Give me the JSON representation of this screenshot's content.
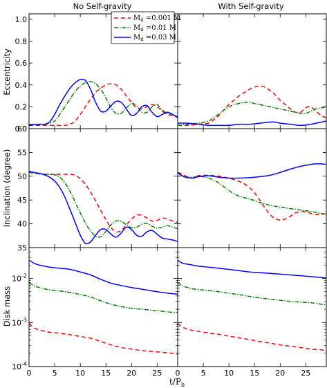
{
  "figure": {
    "column_titles": [
      "No Self-gravity",
      "With Self-gravity"
    ],
    "xlabel": "t/P_b",
    "xlabel_main": "t/P",
    "xlabel_sub": "b",
    "x_ticks": [
      "0",
      "5",
      "10",
      "15",
      "20",
      "25"
    ],
    "row_ylabels": [
      "Eccentricity",
      "Inclination (degree)",
      "Disk mass"
    ],
    "legend": [
      {
        "name": "M_d =0.001 M",
        "main": "M",
        "sub": "d",
        "rest": " =0.001 M",
        "color": "#ff0000",
        "dash": "6,4"
      },
      {
        "name": "M_d =0.01 M",
        "main": "M",
        "sub": "d",
        "rest": " =0.01 M",
        "color": "#008000",
        "dash": "6,2,1.5,2"
      },
      {
        "name": "M_d =0.03 M",
        "main": "M",
        "sub": "d",
        "rest": " =0.03 M",
        "color": "#0000ff",
        "dash": ""
      }
    ]
  },
  "chart_data": [
    {
      "type": "line",
      "panel": "eccentricity-no-self-gravity",
      "ylabel": "Eccentricity",
      "xlim": [
        0,
        29
      ],
      "ylim": [
        0,
        1.05
      ],
      "y_ticks": [
        "0.0",
        "0.2",
        "0.4",
        "0.6",
        "0.8",
        "1.0"
      ],
      "series": [
        {
          "name": "M_d =0.001 M",
          "x": [
            0,
            3,
            5,
            7,
            8,
            9,
            10,
            11,
            12,
            13,
            14,
            15,
            16,
            17,
            18,
            19,
            20,
            21,
            22,
            23,
            24,
            25,
            26,
            27,
            28,
            29
          ],
          "y": [
            0.03,
            0.03,
            0.03,
            0.03,
            0.04,
            0.07,
            0.13,
            0.2,
            0.27,
            0.33,
            0.37,
            0.4,
            0.41,
            0.4,
            0.36,
            0.3,
            0.24,
            0.19,
            0.18,
            0.2,
            0.22,
            0.2,
            0.16,
            0.13,
            0.12,
            0.11
          ]
        },
        {
          "name": "M_d =0.01 M",
          "x": [
            0,
            3,
            4,
            5,
            6,
            7,
            8,
            9,
            10,
            11,
            12,
            13,
            14,
            15,
            16,
            17,
            18,
            19,
            20,
            21,
            22,
            23,
            24,
            25,
            26,
            27,
            28,
            29
          ],
          "y": [
            0.04,
            0.04,
            0.05,
            0.07,
            0.13,
            0.2,
            0.27,
            0.34,
            0.39,
            0.42,
            0.43,
            0.41,
            0.36,
            0.28,
            0.19,
            0.14,
            0.14,
            0.19,
            0.23,
            0.21,
            0.15,
            0.15,
            0.2,
            0.22,
            0.17,
            0.14,
            0.13,
            0.11
          ]
        },
        {
          "name": "M_d =0.03 M",
          "x": [
            0,
            2,
            3,
            4,
            5,
            6,
            7,
            8,
            9,
            10,
            11,
            12,
            13,
            14,
            15,
            16,
            17,
            18,
            19,
            20,
            21,
            22,
            23,
            24,
            25,
            26,
            27,
            28,
            29
          ],
          "y": [
            0.03,
            0.04,
            0.04,
            0.06,
            0.13,
            0.22,
            0.3,
            0.37,
            0.42,
            0.45,
            0.44,
            0.36,
            0.24,
            0.16,
            0.16,
            0.21,
            0.25,
            0.24,
            0.18,
            0.12,
            0.14,
            0.2,
            0.21,
            0.15,
            0.11,
            0.13,
            0.15,
            0.13,
            0.1
          ]
        }
      ]
    },
    {
      "type": "line",
      "panel": "eccentricity-with-self-gravity",
      "ylabel": "Eccentricity",
      "xlim": [
        0,
        29
      ],
      "ylim": [
        0,
        1.05
      ],
      "series": [
        {
          "name": "M_d =0.001 M",
          "x": [
            0,
            2,
            4,
            6,
            7,
            8,
            9,
            10,
            11,
            12,
            13,
            14,
            15,
            16,
            17,
            18,
            19,
            20,
            21,
            22,
            23,
            24,
            25,
            26,
            27,
            28,
            29
          ],
          "y": [
            0.03,
            0.03,
            0.04,
            0.05,
            0.08,
            0.12,
            0.17,
            0.22,
            0.26,
            0.3,
            0.33,
            0.36,
            0.38,
            0.39,
            0.38,
            0.35,
            0.31,
            0.26,
            0.22,
            0.18,
            0.15,
            0.15,
            0.19,
            0.2,
            0.16,
            0.12,
            0.1
          ]
        },
        {
          "name": "M_d =0.01 M",
          "x": [
            0,
            2,
            4,
            6,
            7,
            8,
            9,
            10,
            11,
            12,
            13,
            14,
            15,
            16,
            17,
            18,
            19,
            20,
            21,
            22,
            23,
            24,
            25,
            26,
            27,
            28,
            29
          ],
          "y": [
            0.03,
            0.04,
            0.05,
            0.07,
            0.1,
            0.13,
            0.17,
            0.2,
            0.22,
            0.23,
            0.24,
            0.24,
            0.23,
            0.22,
            0.21,
            0.2,
            0.19,
            0.18,
            0.17,
            0.16,
            0.15,
            0.14,
            0.14,
            0.16,
            0.18,
            0.19,
            0.2
          ]
        },
        {
          "name": "M_d =0.03 M",
          "x": [
            0,
            2,
            4,
            6,
            8,
            10,
            12,
            14,
            16,
            18,
            19,
            20,
            22,
            24,
            26,
            27,
            28,
            29
          ],
          "y": [
            0.05,
            0.05,
            0.04,
            0.03,
            0.03,
            0.03,
            0.04,
            0.04,
            0.05,
            0.06,
            0.06,
            0.05,
            0.04,
            0.03,
            0.04,
            0.05,
            0.06,
            0.07
          ]
        }
      ]
    },
    {
      "type": "line",
      "panel": "inclination-no-self-gravity",
      "ylabel": "Inclination (degree)",
      "xlim": [
        0,
        29
      ],
      "ylim": [
        35,
        60
      ],
      "y_ticks": [
        "35",
        "40",
        "45",
        "50",
        "55",
        "60"
      ],
      "series": [
        {
          "name": "M_d =0.001 M",
          "x": [
            0,
            2,
            4,
            6,
            8,
            9,
            10,
            11,
            12,
            13,
            14,
            15,
            16,
            17,
            18,
            19,
            20,
            21,
            22,
            23,
            24,
            25,
            26,
            27,
            28,
            29
          ],
          "y": [
            50.8,
            50.5,
            50.4,
            50.4,
            50.4,
            50.2,
            49.5,
            48.3,
            46.7,
            44.8,
            42.8,
            40.9,
            39.2,
            38.3,
            38.6,
            39.8,
            41.0,
            41.8,
            41.8,
            41.2,
            40.6,
            40.7,
            41.2,
            41.0,
            40.6,
            40.3
          ]
        },
        {
          "name": "M_d =0.01 M",
          "x": [
            0,
            2,
            4,
            5,
            6,
            7,
            8,
            9,
            10,
            11,
            12,
            13,
            14,
            15,
            16,
            17,
            18,
            19,
            20,
            21,
            22,
            23,
            24,
            25,
            26,
            27,
            28,
            29
          ],
          "y": [
            50.8,
            50.5,
            50.4,
            50.3,
            49.8,
            48.6,
            46.8,
            44.6,
            42.3,
            40.2,
            38.5,
            37.4,
            37.3,
            38.4,
            39.8,
            40.6,
            40.5,
            39.8,
            39.2,
            39.3,
            39.9,
            40.1,
            39.5,
            39.1,
            39.3,
            39.6,
            39.3,
            39.0
          ]
        },
        {
          "name": "M_d =0.03 M",
          "x": [
            0,
            2,
            3,
            4,
            5,
            6,
            7,
            8,
            9,
            10,
            11,
            12,
            13,
            14,
            15,
            16,
            17,
            18,
            19,
            20,
            21,
            22,
            23,
            24,
            25,
            26,
            27,
            28,
            29
          ],
          "y": [
            51.0,
            50.6,
            50.3,
            49.8,
            49.0,
            47.6,
            45.6,
            43.0,
            40.3,
            37.6,
            35.9,
            36.2,
            37.6,
            38.8,
            38.8,
            37.8,
            37.2,
            38.1,
            39.3,
            38.8,
            37.6,
            37.4,
            38.3,
            38.6,
            37.8,
            37.0,
            36.8,
            36.6,
            36.3
          ]
        }
      ]
    },
    {
      "type": "line",
      "panel": "inclination-with-self-gravity",
      "ylabel": "Inclination (degree)",
      "xlim": [
        0,
        29
      ],
      "ylim": [
        35,
        60
      ],
      "series": [
        {
          "name": "M_d =0.001 M",
          "x": [
            0,
            1,
            2,
            3,
            4,
            6,
            8,
            10,
            12,
            13,
            14,
            15,
            16,
            17,
            18,
            19,
            20,
            21,
            22,
            23,
            24,
            25,
            26,
            27,
            28,
            29
          ],
          "y": [
            50.8,
            50.4,
            49.8,
            49.6,
            50.1,
            50.2,
            50.0,
            49.6,
            48.9,
            48.4,
            47.6,
            46.5,
            45.0,
            43.4,
            42.0,
            41.1,
            40.8,
            41.0,
            41.6,
            42.3,
            42.6,
            42.5,
            42.2,
            42.0,
            42.0,
            42.1
          ]
        },
        {
          "name": "M_d =0.01 M",
          "x": [
            0,
            1,
            2,
            3,
            4,
            5,
            6,
            7,
            8,
            9,
            10,
            11,
            12,
            13,
            14,
            15,
            16,
            17,
            18,
            20,
            22,
            24,
            26,
            28,
            29
          ],
          "y": [
            50.6,
            50.1,
            49.8,
            49.8,
            49.9,
            49.9,
            49.6,
            49.2,
            48.6,
            47.8,
            47.0,
            46.3,
            45.8,
            45.5,
            45.2,
            44.9,
            44.5,
            44.2,
            43.9,
            43.5,
            43.2,
            42.9,
            42.6,
            42.2,
            42.0
          ]
        },
        {
          "name": "M_d =0.03 M",
          "x": [
            0,
            1,
            2,
            3,
            4,
            6,
            8,
            10,
            12,
            14,
            16,
            18,
            20,
            22,
            24,
            25,
            26,
            27,
            28,
            29
          ],
          "y": [
            50.8,
            50.0,
            49.7,
            49.6,
            49.9,
            50.1,
            49.8,
            49.6,
            49.6,
            49.7,
            49.9,
            50.2,
            50.8,
            51.5,
            52.1,
            52.3,
            52.5,
            52.6,
            52.6,
            52.5
          ]
        }
      ]
    },
    {
      "type": "line",
      "panel": "disk-mass-no-self-gravity",
      "ylabel": "Disk mass",
      "xlim": [
        0,
        29
      ],
      "ylim": [
        0.0001,
        0.05
      ],
      "yscale": "log",
      "y_ticks": [
        "10-4",
        "10-3",
        "10-2"
      ],
      "series": [
        {
          "name": "M_d =0.001 M",
          "x": [
            0,
            1,
            2,
            3,
            4,
            6,
            8,
            10,
            12,
            14,
            16,
            18,
            20,
            22,
            24,
            26,
            28,
            29
          ],
          "y": [
            0.00095,
            0.00075,
            0.00068,
            0.00064,
            0.0006,
            0.00057,
            0.00053,
            0.00048,
            0.00044,
            0.00037,
            0.00031,
            0.00027,
            0.00025,
            0.00023,
            0.00022,
            0.00021,
            0.0002,
            0.00019
          ]
        },
        {
          "name": "M_d =0.01 M",
          "x": [
            0,
            1,
            2,
            3,
            4,
            6,
            8,
            10,
            12,
            14,
            16,
            18,
            20,
            22,
            24,
            26,
            28,
            29
          ],
          "y": [
            0.008,
            0.0068,
            0.0062,
            0.0058,
            0.0055,
            0.0052,
            0.0048,
            0.0043,
            0.0038,
            0.0031,
            0.0026,
            0.0023,
            0.0021,
            0.002,
            0.0019,
            0.0018,
            0.0017,
            0.0017
          ]
        },
        {
          "name": "M_d =0.03 M",
          "x": [
            0,
            1,
            2,
            3,
            4,
            6,
            8,
            10,
            12,
            14,
            16,
            18,
            20,
            22,
            24,
            26,
            28,
            29
          ],
          "y": [
            0.026,
            0.022,
            0.02,
            0.019,
            0.018,
            0.017,
            0.016,
            0.014,
            0.012,
            0.0095,
            0.0078,
            0.0069,
            0.0062,
            0.0057,
            0.0052,
            0.0048,
            0.0045,
            0.0044
          ]
        }
      ]
    },
    {
      "type": "line",
      "panel": "disk-mass-with-self-gravity",
      "ylabel": "Disk mass",
      "xlim": [
        0,
        29
      ],
      "ylim": [
        0.0001,
        0.05
      ],
      "yscale": "log",
      "series": [
        {
          "name": "M_d =0.001 M",
          "x": [
            0,
            1,
            2,
            3,
            4,
            6,
            8,
            10,
            12,
            14,
            16,
            18,
            20,
            22,
            24,
            26,
            28,
            29
          ],
          "y": [
            0.00095,
            0.00078,
            0.0007,
            0.00066,
            0.00063,
            0.00058,
            0.00054,
            0.00049,
            0.00045,
            0.00041,
            0.00037,
            0.00034,
            0.00031,
            0.00029,
            0.00027,
            0.00025,
            0.00024,
            0.00023
          ]
        },
        {
          "name": "M_d =0.01 M",
          "x": [
            0,
            1,
            2,
            3,
            4,
            6,
            8,
            10,
            12,
            14,
            16,
            18,
            20,
            22,
            24,
            26,
            28,
            29
          ],
          "y": [
            0.008,
            0.0067,
            0.0062,
            0.0058,
            0.0056,
            0.0053,
            0.005,
            0.0046,
            0.0043,
            0.0039,
            0.0036,
            0.0034,
            0.0032,
            0.003,
            0.0029,
            0.0028,
            0.0026,
            0.0025
          ]
        },
        {
          "name": "M_d =0.03 M",
          "x": [
            0,
            1,
            2,
            3,
            4,
            6,
            8,
            10,
            12,
            14,
            16,
            18,
            20,
            22,
            24,
            26,
            28,
            29
          ],
          "y": [
            0.026,
            0.022,
            0.021,
            0.02,
            0.019,
            0.018,
            0.017,
            0.016,
            0.015,
            0.014,
            0.0135,
            0.013,
            0.0125,
            0.012,
            0.0115,
            0.011,
            0.0105,
            0.0102
          ]
        }
      ]
    }
  ]
}
